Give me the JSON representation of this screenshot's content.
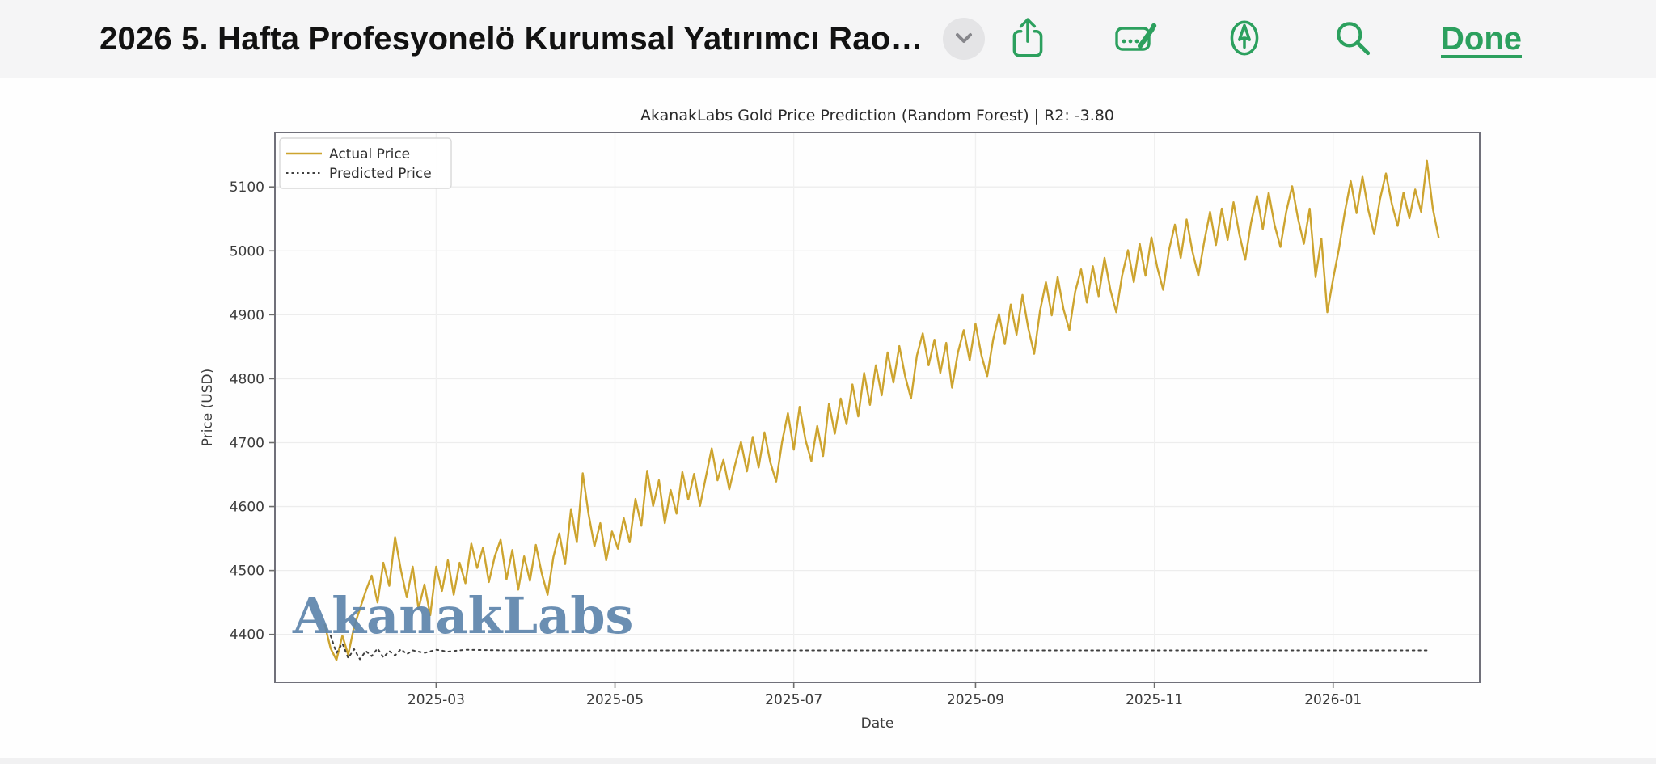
{
  "toolbar": {
    "title": "2026 5. Hafta Profesyonelö Kurumsal Yatırımcı Rao…",
    "done_label": "Done",
    "accent_color": "#2ca05e",
    "icons": [
      "share-icon",
      "autofill-signature-icon",
      "markup-pen-icon",
      "search-icon"
    ]
  },
  "chart_data": {
    "type": "line",
    "title": "AkanakLabs Gold Price Prediction (Random Forest) | R2: -3.80",
    "xlabel": "Date",
    "ylabel": "Price (USD)",
    "watermark": "AkanakLabs",
    "watermark_color": "#5d84ab",
    "grid": true,
    "legend_position": "upper-left",
    "x_ticks": [
      "2025-03",
      "2025-05",
      "2025-07",
      "2025-09",
      "2025-11",
      "2026-01"
    ],
    "y_ticks": [
      4400,
      4500,
      4600,
      4700,
      4800,
      4900,
      5000,
      5100
    ],
    "xlim": [
      "2025-01-05",
      "2026-02-20"
    ],
    "ylim": [
      4325,
      5185
    ],
    "series": [
      {
        "name": "Actual Price",
        "color": "#cda42f",
        "style": "solid",
        "start_date": "2025-01-22",
        "step_days": 2,
        "values": [
          4415,
          4378,
          4360,
          4398,
          4368,
          4412,
          4440,
          4468,
          4492,
          4450,
          4512,
          4476,
          4552,
          4500,
          4458,
          4506,
          4440,
          4478,
          4430,
          4506,
          4468,
          4516,
          4462,
          4512,
          4480,
          4542,
          4504,
          4536,
          4482,
          4522,
          4548,
          4486,
          4532,
          4470,
          4522,
          4484,
          4540,
          4496,
          4462,
          4521,
          4558,
          4510,
          4596,
          4544,
          4652,
          4588,
          4538,
          4574,
          4516,
          4561,
          4534,
          4582,
          4544,
          4612,
          4570,
          4656,
          4601,
          4641,
          4574,
          4626,
          4589,
          4654,
          4611,
          4651,
          4601,
          4646,
          4691,
          4641,
          4673,
          4627,
          4666,
          4701,
          4655,
          4709,
          4661,
          4716,
          4669,
          4639,
          4701,
          4746,
          4689,
          4756,
          4704,
          4671,
          4726,
          4679,
          4761,
          4714,
          4769,
          4729,
          4791,
          4741,
          4809,
          4759,
          4821,
          4774,
          4841,
          4794,
          4851,
          4804,
          4769,
          4836,
          4871,
          4821,
          4861,
          4809,
          4856,
          4786,
          4841,
          4876,
          4829,
          4886,
          4837,
          4804,
          4861,
          4901,
          4854,
          4916,
          4869,
          4931,
          4879,
          4839,
          4906,
          4951,
          4899,
          4959,
          4909,
          4876,
          4936,
          4971,
          4919,
          4976,
          4929,
          4989,
          4939,
          4904,
          4961,
          5001,
          4951,
          5011,
          4961,
          5021,
          4974,
          4939,
          5001,
          5041,
          4989,
          5049,
          4999,
          4961,
          5014,
          5061,
          5009,
          5066,
          5017,
          5076,
          5026,
          4986,
          5044,
          5086,
          5034,
          5091,
          5041,
          5006,
          5061,
          5101,
          5051,
          5011,
          5066,
          4959,
          5019,
          4904,
          4956,
          5004,
          5061,
          5109,
          5059,
          5116,
          5064,
          5026,
          5081,
          5121,
          5074,
          5039,
          5091,
          5051,
          5096,
          5061,
          5141,
          5066,
          5021
        ]
      },
      {
        "name": "Predicted Price",
        "color": "#3f3f3f",
        "style": "dotted",
        "start_date": "2025-01-24",
        "points": [
          [
            0,
            4398
          ],
          [
            2,
            4371
          ],
          [
            4,
            4386
          ],
          [
            6,
            4363
          ],
          [
            8,
            4377
          ],
          [
            10,
            4361
          ],
          [
            12,
            4374
          ],
          [
            14,
            4366
          ],
          [
            16,
            4378
          ],
          [
            18,
            4364
          ],
          [
            20,
            4374
          ],
          [
            22,
            4367
          ],
          [
            24,
            4377
          ],
          [
            26,
            4369
          ],
          [
            28,
            4375
          ],
          [
            32,
            4371
          ],
          [
            36,
            4376
          ],
          [
            40,
            4373
          ],
          [
            46,
            4376
          ],
          [
            60,
            4375
          ],
          [
            374,
            4375
          ]
        ]
      }
    ]
  }
}
